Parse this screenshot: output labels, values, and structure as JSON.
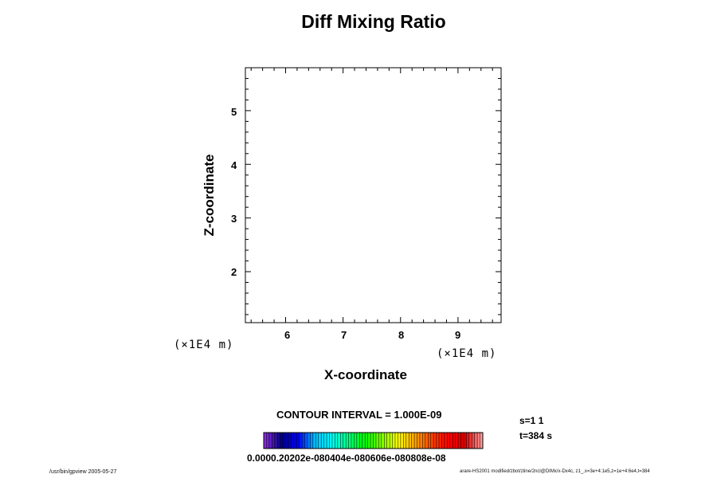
{
  "chart_data": {
    "type": "contour",
    "title": "Diff Mixing Ratio",
    "xlabel": "X-coordinate",
    "ylabel": "Z-coordinate",
    "x_unit_label": "(×1E4 m)",
    "z_unit_label": "(×1E4 m)",
    "xlim": [
      5.3,
      9.75
    ],
    "zlim": [
      1.05,
      5.8
    ],
    "x_ticks": [
      "6",
      "7",
      "8",
      "9"
    ],
    "z_ticks": [
      "5",
      "4",
      "3",
      "2"
    ],
    "series": [],
    "contour_interval_label": "CONTOUR INTERVAL = 1.000E-09",
    "colorbar": {
      "min": 0.0,
      "max": 1e-08,
      "label_text": "0.0000.20202e-080404e-080606e-080808e-08",
      "colors": [
        "#8a2be2",
        "#000080",
        "#0000ff",
        "#00bfff",
        "#00ffff",
        "#00ff7f",
        "#00ff00",
        "#7fff00",
        "#ffff00",
        "#ffa500",
        "#ff4500",
        "#ff0000",
        "#dd0000",
        "#ff9999"
      ]
    }
  },
  "info": {
    "step": "s=1 1",
    "time": "t=384 s"
  },
  "footer": {
    "left": "/usr/bin/gpview 2005-05-27",
    "right": "arare-HS2001 modified/zbot/zline/2ncl@DIMx/x-Dx4c, z1_,x=3e+4:1e5,z=1e+4:6e4,t=384"
  }
}
